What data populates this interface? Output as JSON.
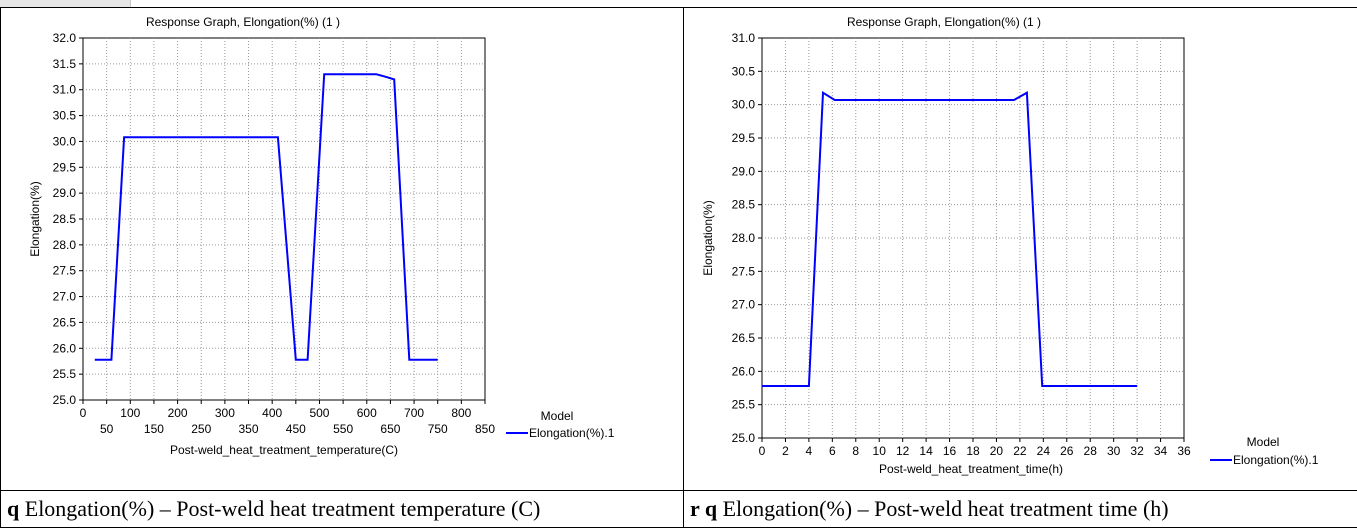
{
  "chart_data": [
    {
      "type": "line",
      "title": "Response Graph, Elongation(%) (1 )",
      "xlabel": "Post-weld_heat_treatment_temperature(C)",
      "ylabel": "Elongation(%)",
      "xlim": [
        0,
        850
      ],
      "ylim": [
        25.0,
        32.0
      ],
      "xticks_row1": [
        "0",
        "100",
        "200",
        "300",
        "400",
        "500",
        "600",
        "700",
        "800"
      ],
      "xticks_row2": [
        "50",
        "150",
        "250",
        "350",
        "450",
        "550",
        "650",
        "750",
        "850"
      ],
      "yticks": [
        "25.0",
        "25.5",
        "26.0",
        "26.5",
        "27.0",
        "27.5",
        "28.0",
        "28.5",
        "29.0",
        "29.5",
        "30.0",
        "30.5",
        "31.0",
        "31.5",
        "32.0"
      ],
      "grid": true,
      "legend": {
        "title": "Model",
        "entries": [
          "Elongation(%).1"
        ],
        "placement": "bottom-right"
      },
      "series": [
        {
          "name": "Elongation(%).1",
          "color": "#0000ff",
          "x": [
            25,
            60,
            87,
            100,
            200,
            300,
            412,
            450,
            475,
            510,
            620,
            640,
            658,
            690,
            750
          ],
          "y": [
            25.78,
            25.78,
            30.08,
            30.08,
            30.08,
            30.08,
            30.08,
            25.78,
            25.78,
            31.3,
            31.3,
            31.25,
            31.2,
            25.78,
            25.78
          ]
        }
      ]
    },
    {
      "type": "line",
      "title": "Response Graph, Elongation(%) (1 )",
      "xlabel": "Post-weld_heat_treatment_time(h)",
      "ylabel": "Elongation(%)",
      "xlim": [
        0,
        36
      ],
      "ylim": [
        25.0,
        31.0
      ],
      "xticks": [
        "0",
        "2",
        "4",
        "6",
        "8",
        "10",
        "12",
        "14",
        "16",
        "18",
        "20",
        "22",
        "24",
        "26",
        "28",
        "30",
        "32",
        "34",
        "36"
      ],
      "yticks": [
        "25.0",
        "25.5",
        "26.0",
        "26.5",
        "27.0",
        "27.5",
        "28.0",
        "28.5",
        "29.0",
        "29.5",
        "30.0",
        "30.5",
        "31.0"
      ],
      "grid": true,
      "legend": {
        "title": "Model",
        "entries": [
          "Elongation(%).1"
        ],
        "placement": "bottom-right"
      },
      "series": [
        {
          "name": "Elongation(%).1",
          "color": "#0000ff",
          "x": [
            0,
            4,
            5.2,
            6.2,
            21.5,
            22.6,
            23.9,
            32
          ],
          "y": [
            25.78,
            25.78,
            30.18,
            30.07,
            30.07,
            30.18,
            25.78,
            25.78
          ]
        }
      ]
    }
  ],
  "captions": {
    "left": {
      "letter": "q",
      "text": " Elongation(%) – Post-weld heat treatment temperature (C)"
    },
    "right": {
      "letter": "r q",
      "text": " Elongation(%) – Post-weld heat treatment time (h)"
    }
  }
}
